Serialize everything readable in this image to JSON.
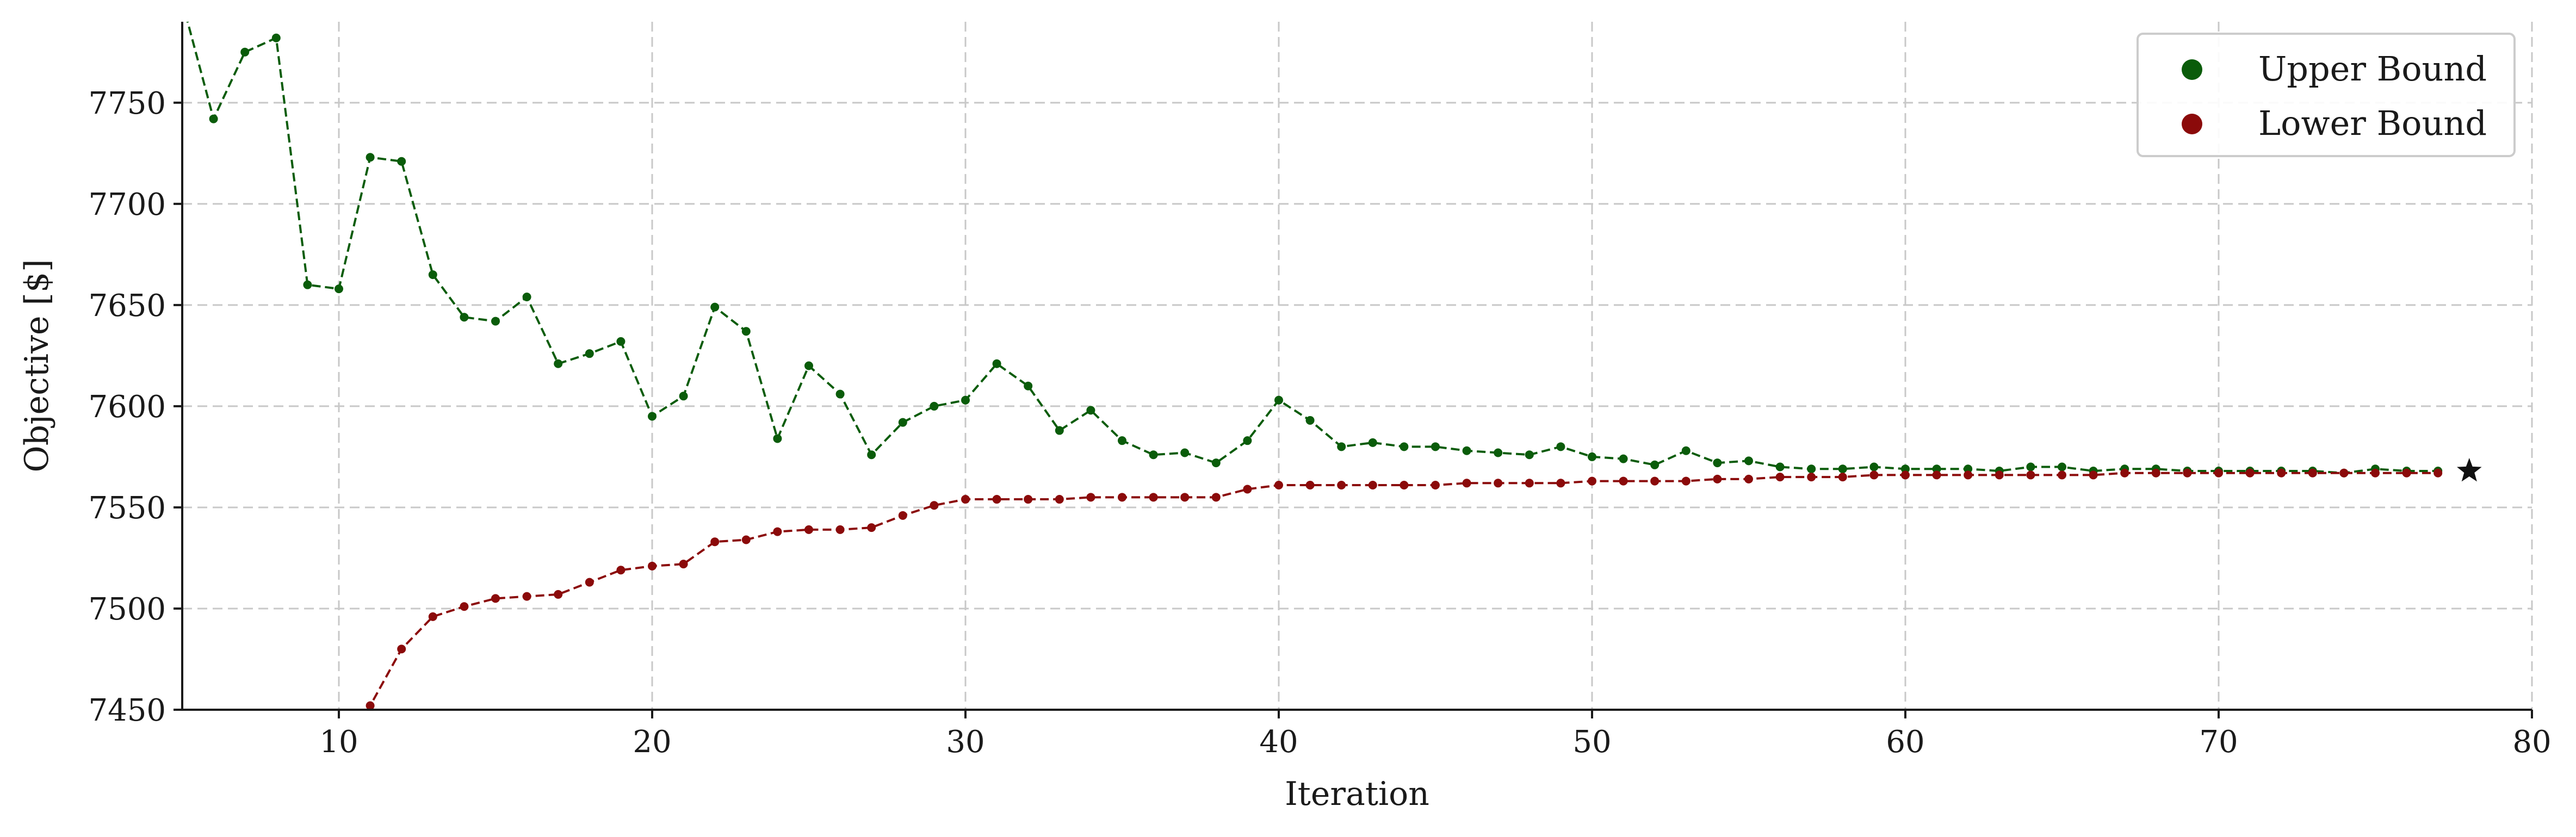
{
  "chart_data": {
    "type": "line",
    "title": "",
    "xlabel": "Iteration",
    "ylabel": "Objective [$]",
    "xlim": [
      5,
      80
    ],
    "ylim": [
      7450,
      7790
    ],
    "xticks": [
      10,
      20,
      30,
      40,
      50,
      60,
      70,
      80
    ],
    "yticks": [
      7450,
      7500,
      7550,
      7600,
      7650,
      7700,
      7750
    ],
    "grid": true,
    "legend": "top-right",
    "series": [
      {
        "name": "Upper Bound",
        "color": "#0a5c0a",
        "x": [
          5,
          6,
          7,
          8,
          9,
          10,
          11,
          12,
          13,
          14,
          15,
          16,
          17,
          18,
          19,
          20,
          21,
          22,
          23,
          24,
          25,
          26,
          27,
          28,
          29,
          30,
          31,
          32,
          33,
          34,
          35,
          36,
          37,
          38,
          39,
          40,
          41,
          42,
          43,
          44,
          45,
          46,
          47,
          48,
          49,
          50,
          51,
          52,
          53,
          54,
          55,
          56,
          57,
          58,
          59,
          60,
          61,
          62,
          63,
          64,
          65,
          66,
          67,
          68,
          69,
          70,
          71,
          72,
          73,
          74,
          75,
          76,
          77
        ],
        "values": [
          7800,
          7742,
          7775,
          7782,
          7660,
          7658,
          7723,
          7721,
          7665,
          7644,
          7642,
          7654,
          7621,
          7626,
          7632,
          7595,
          7605,
          7649,
          7637,
          7584,
          7620,
          7606,
          7576,
          7592,
          7600,
          7603,
          7621,
          7610,
          7588,
          7598,
          7583,
          7576,
          7577,
          7572,
          7583,
          7603,
          7593,
          7580,
          7582,
          7580,
          7580,
          7578,
          7577,
          7576,
          7580,
          7575,
          7574,
          7571,
          7578,
          7572,
          7573,
          7570,
          7569,
          7569,
          7570,
          7569,
          7569,
          7569,
          7568,
          7570,
          7570,
          7568,
          7569,
          7569,
          7568,
          7568,
          7568,
          7568,
          7568,
          7567,
          7569,
          7568,
          7568
        ]
      },
      {
        "name": "Lower Bound",
        "color": "#8b0a0a",
        "x": [
          10,
          11,
          12,
          13,
          14,
          15,
          16,
          17,
          18,
          19,
          20,
          21,
          22,
          23,
          24,
          25,
          26,
          27,
          28,
          29,
          30,
          31,
          32,
          33,
          34,
          35,
          36,
          37,
          38,
          39,
          40,
          41,
          42,
          43,
          44,
          45,
          46,
          47,
          48,
          49,
          50,
          51,
          52,
          53,
          54,
          55,
          56,
          57,
          58,
          59,
          60,
          61,
          62,
          63,
          64,
          65,
          66,
          67,
          68,
          69,
          70,
          71,
          72,
          73,
          74,
          75,
          76,
          77
        ],
        "values": [
          7420,
          7452,
          7480,
          7496,
          7501,
          7505,
          7506,
          7507,
          7513,
          7519,
          7521,
          7522,
          7533,
          7534,
          7538,
          7539,
          7539,
          7540,
          7546,
          7551,
          7554,
          7554,
          7554,
          7554,
          7555,
          7555,
          7555,
          7555,
          7555,
          7559,
          7561,
          7561,
          7561,
          7561,
          7561,
          7561,
          7562,
          7562,
          7562,
          7562,
          7563,
          7563,
          7563,
          7563,
          7564,
          7564,
          7565,
          7565,
          7565,
          7566,
          7566,
          7566,
          7566,
          7566,
          7566,
          7566,
          7566,
          7567,
          7567,
          7567,
          7567,
          7567,
          7567,
          7567,
          7567,
          7567,
          7567,
          7567
        ]
      }
    ],
    "final_marker": {
      "x": 78,
      "y": 7568,
      "shape": "star",
      "color": "#111111"
    }
  }
}
